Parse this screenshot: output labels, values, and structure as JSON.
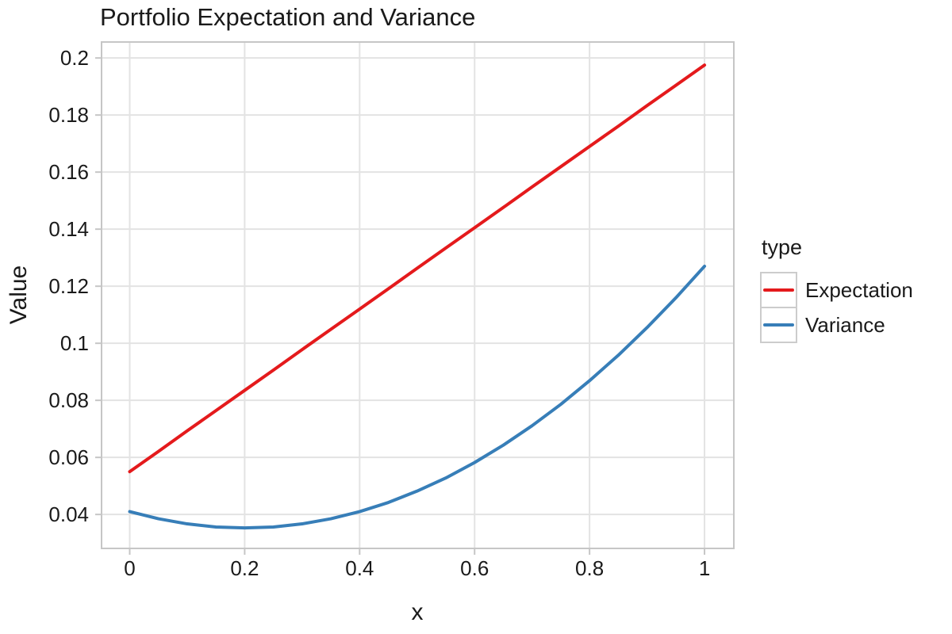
{
  "figure": {
    "background": "#ffffff"
  },
  "styles": {
    "grid_color": "#e3e3e3",
    "border_color": "#c6c6c6",
    "tick_color": "#c6c6c6",
    "text_color": "#1a1a1a"
  },
  "chart_data": {
    "type": "line",
    "title": "Portfolio Expectation and Variance",
    "xlabel": "x",
    "ylabel": "Value",
    "grid": true,
    "legend": {
      "title": "type",
      "position": "right",
      "entries": [
        "Expectation",
        "Variance"
      ]
    },
    "xlim": [
      -0.049,
      1.051
    ],
    "ylim": [
      0.0281,
      0.2056
    ],
    "x_ticks": {
      "values": [
        0,
        0.2,
        0.4,
        0.6,
        0.8,
        1
      ],
      "labels": [
        "0",
        "0.2",
        "0.4",
        "0.6",
        "0.8",
        "1"
      ]
    },
    "y_ticks": {
      "values": [
        0.04,
        0.06,
        0.08,
        0.1,
        0.12,
        0.14,
        0.16,
        0.18,
        0.2
      ],
      "labels": [
        "0.04",
        "0.06",
        "0.08",
        "0.1",
        "0.12",
        "0.14",
        "0.16",
        "0.18",
        "0.2"
      ]
    },
    "x": [
      0,
      0.05,
      0.1,
      0.15,
      0.2,
      0.25,
      0.3,
      0.35,
      0.4,
      0.45,
      0.5,
      0.55,
      0.6,
      0.65,
      0.7,
      0.75,
      0.8,
      0.85,
      0.9,
      0.95,
      1
    ],
    "series": [
      {
        "name": "Expectation",
        "color": "#e41a1c",
        "values": [
          0.055,
          0.0621,
          0.0693,
          0.0764,
          0.0835,
          0.0906,
          0.0978,
          0.1049,
          0.112,
          0.1191,
          0.1263,
          0.1334,
          0.1405,
          0.1476,
          0.1548,
          0.1619,
          0.169,
          0.1761,
          0.1833,
          0.1904,
          0.1975
        ]
      },
      {
        "name": "Variance",
        "color": "#377eb8",
        "values": [
          0.041,
          0.0385,
          0.0367,
          0.0356,
          0.0353,
          0.0356,
          0.0367,
          0.0385,
          0.041,
          0.0442,
          0.0482,
          0.0528,
          0.0582,
          0.0643,
          0.0711,
          0.0786,
          0.0869,
          0.0958,
          0.1055,
          0.1159,
          0.127
        ]
      }
    ]
  }
}
